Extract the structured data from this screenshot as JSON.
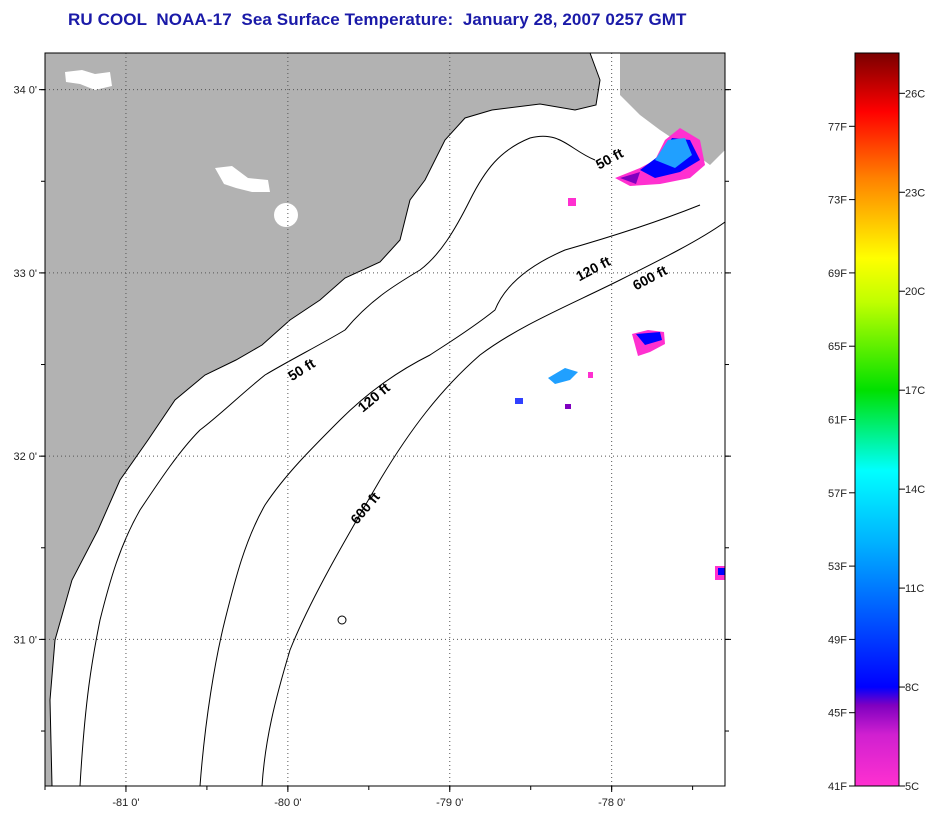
{
  "title": "RU COOL  NOAA-17  Sea Surface Temperature:  January 28, 2007 0257 GMT",
  "map": {
    "lon_range": [
      -81.5,
      -77.3
    ],
    "lat_range": [
      30.2,
      34.2
    ],
    "lon_ticks": [
      -81,
      -80,
      -79,
      -78
    ],
    "lat_ticks": [
      34,
      33,
      32,
      31
    ],
    "lon_tick_labels": [
      "-81 0'",
      "-80 0'",
      "-79 0'",
      "-78 0'"
    ],
    "lat_tick_labels": [
      "34 0'",
      "33 0'",
      "32 0'",
      "31 0'"
    ],
    "land_color": "#b2b2b2",
    "grid": "dotted",
    "contour_labels": [
      {
        "text": "50 ft",
        "lon": -78.0,
        "lat": 33.6
      },
      {
        "text": "120 ft",
        "lon": -78.1,
        "lat": 33.0
      },
      {
        "text": "600 ft",
        "lon": -77.75,
        "lat": 32.95
      },
      {
        "text": "50 ft",
        "lon": -79.9,
        "lat": 32.45
      },
      {
        "text": "120 ft",
        "lon": -79.45,
        "lat": 32.3
      },
      {
        "text": "600 ft",
        "lon": -79.5,
        "lat": 31.7
      }
    ]
  },
  "colorbar": {
    "fahrenheit_labels": [
      "77F",
      "73F",
      "69F",
      "65F",
      "61F",
      "57F",
      "53F",
      "49F",
      "45F",
      "41F"
    ],
    "celsius_labels": [
      "26C",
      "23C",
      "20C",
      "17C",
      "14C",
      "11C",
      "8C",
      "5C"
    ],
    "range_f": [
      41,
      81
    ],
    "colors": {
      "top": "#7a0000",
      "red": "#ff0000",
      "orange": "#ff8000",
      "yellow": "#ffff00",
      "green": "#00e000",
      "cyan": "#00ffff",
      "blue": "#0000ff",
      "purple": "#8000c0",
      "magenta": "#ff30d0"
    }
  }
}
